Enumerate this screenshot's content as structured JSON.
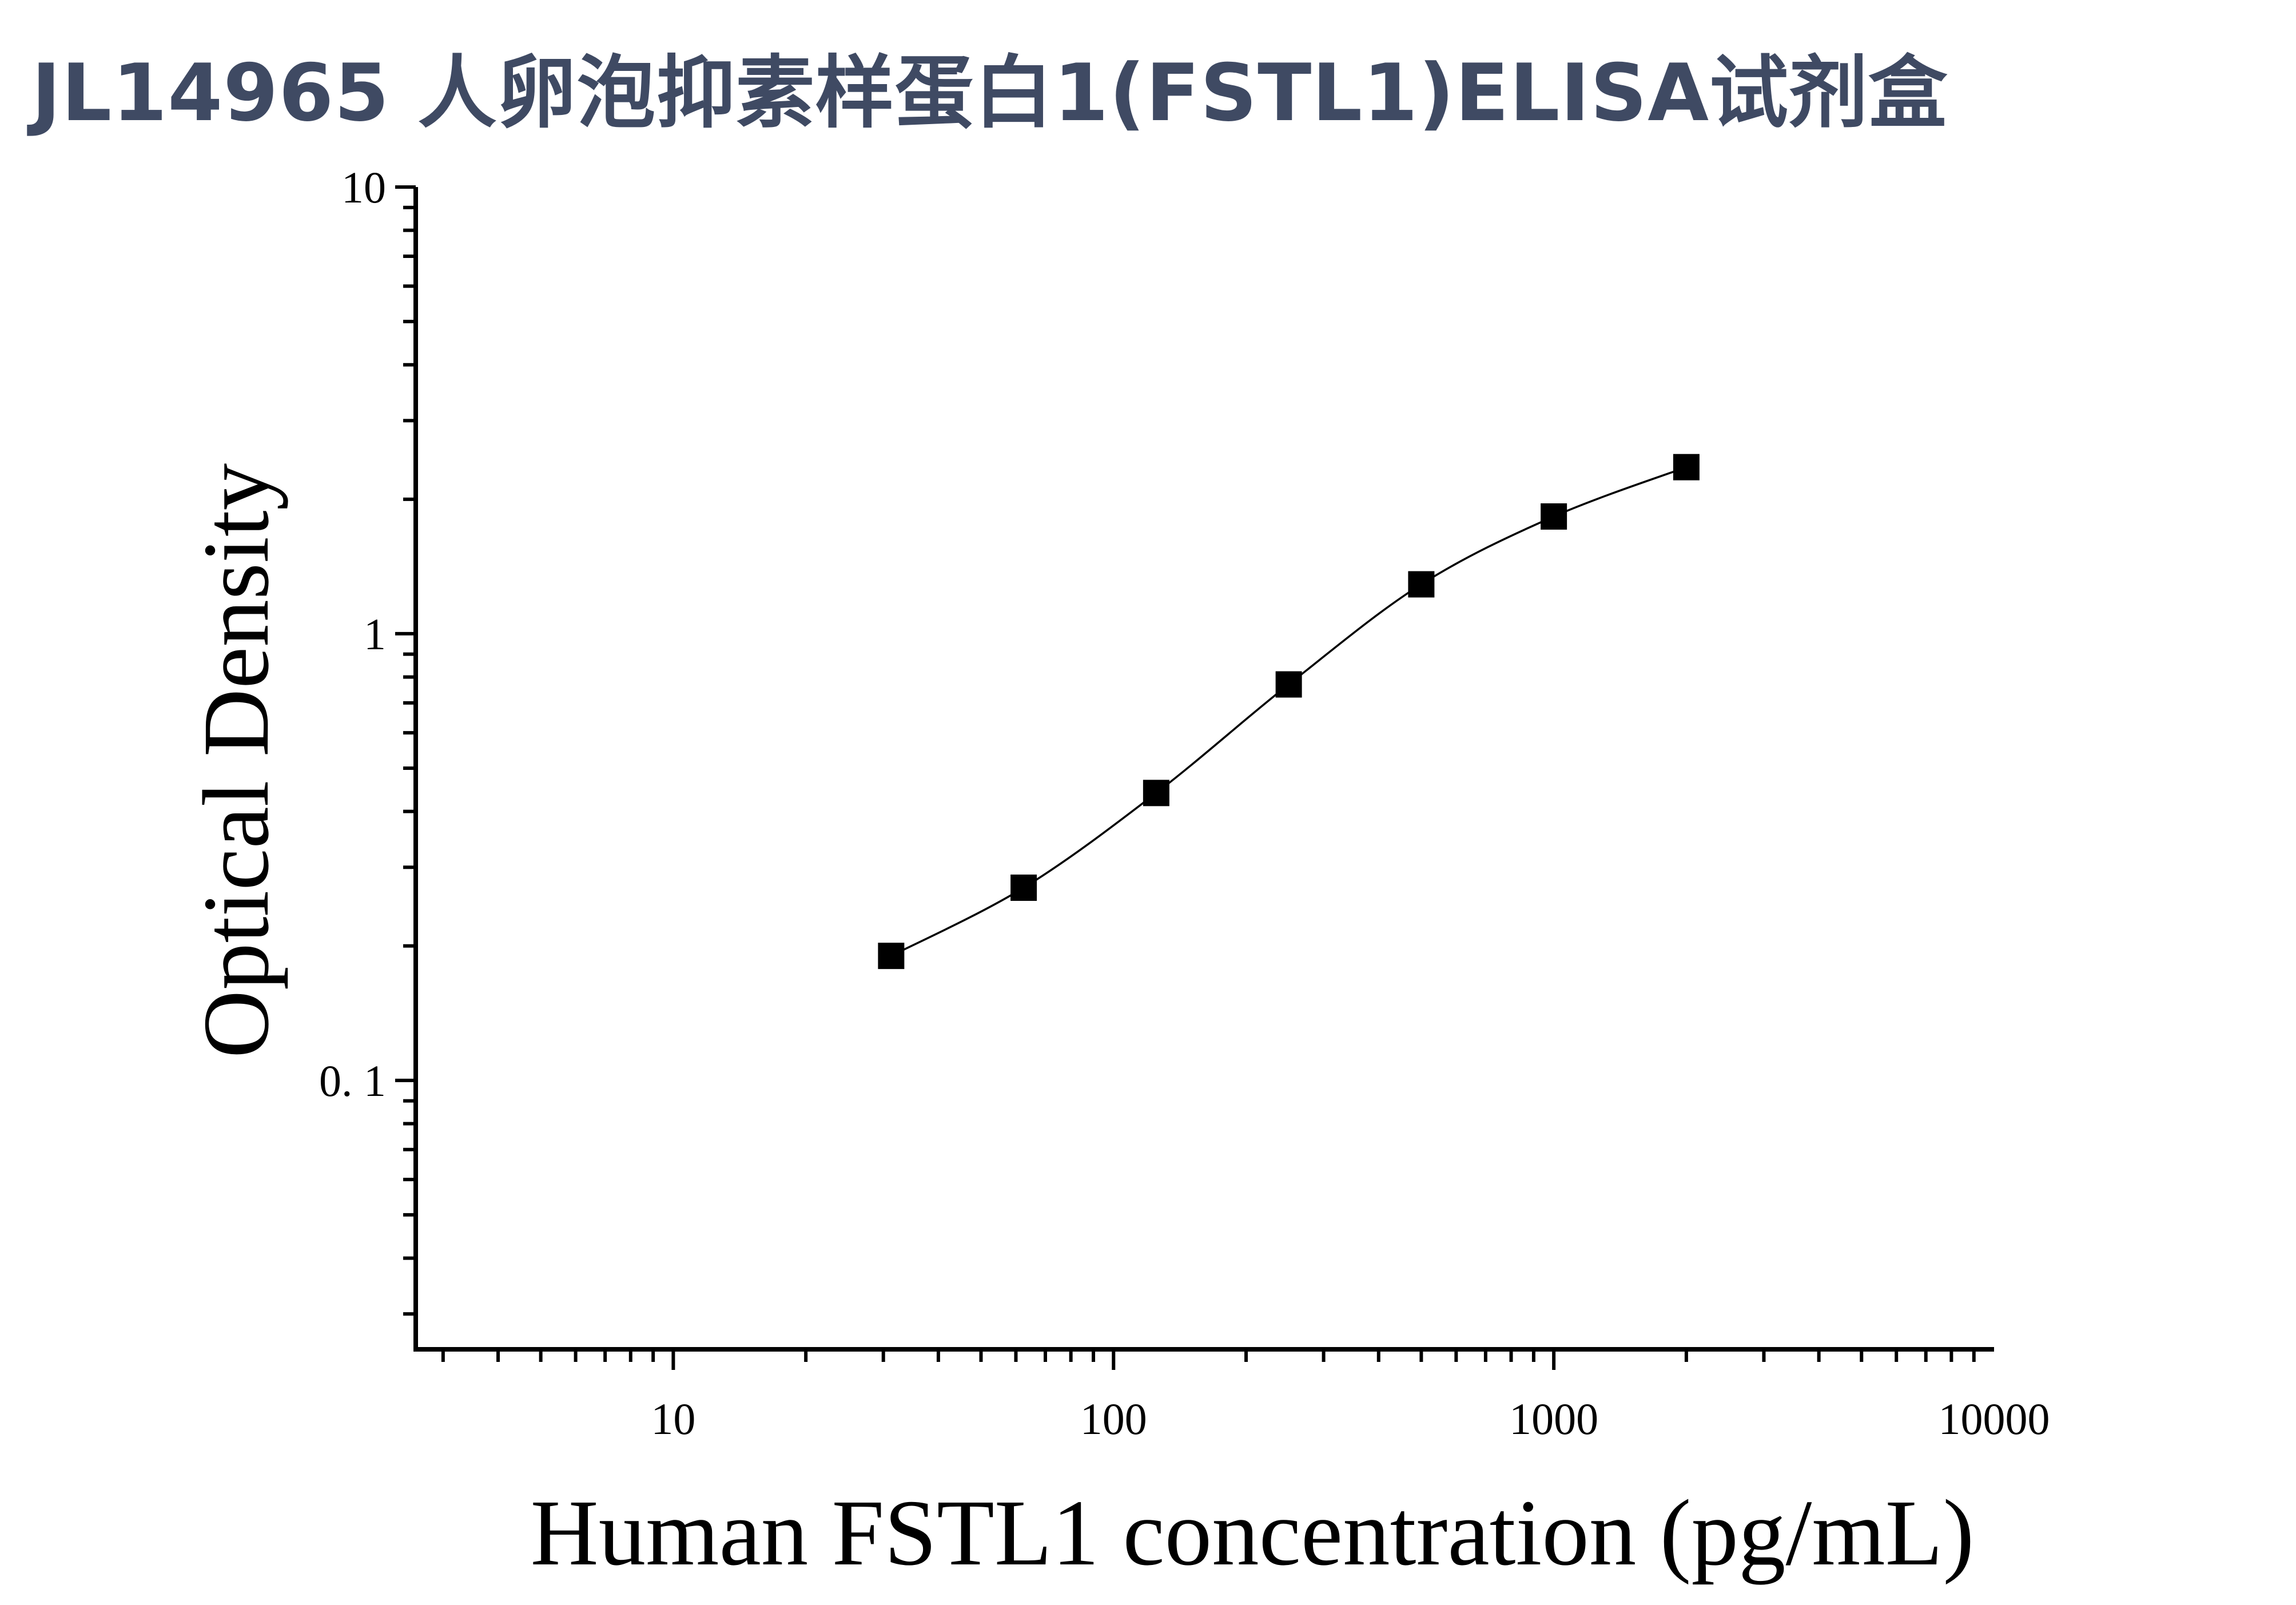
{
  "title": "JL14965 人卵泡抑素样蛋白1(FSTL1)ELISA试剂盒",
  "chart_data": {
    "type": "scatter",
    "xlabel": "Human FSTL1 concentration (pg/mL)",
    "ylabel": "Optical Density",
    "x_scale": "log",
    "y_scale": "log",
    "xlim": [
      2.6,
      10000
    ],
    "ylim": [
      0.025,
      10
    ],
    "x_ticks": [
      10,
      100,
      1000,
      10000
    ],
    "x_tick_labels": [
      "10",
      "100",
      "1000",
      "10000"
    ],
    "y_ticks": [
      0.1,
      1,
      10
    ],
    "y_tick_labels": [
      "0. 1",
      "1",
      "10"
    ],
    "grid": false,
    "legend": "none",
    "marker": "square",
    "fit_line": true,
    "series": [
      {
        "x": [
          31.25,
          62.5,
          125,
          250,
          500,
          1000,
          2000
        ],
        "y": [
          0.19,
          0.27,
          0.44,
          0.77,
          1.29,
          1.83,
          2.36
        ]
      }
    ]
  }
}
